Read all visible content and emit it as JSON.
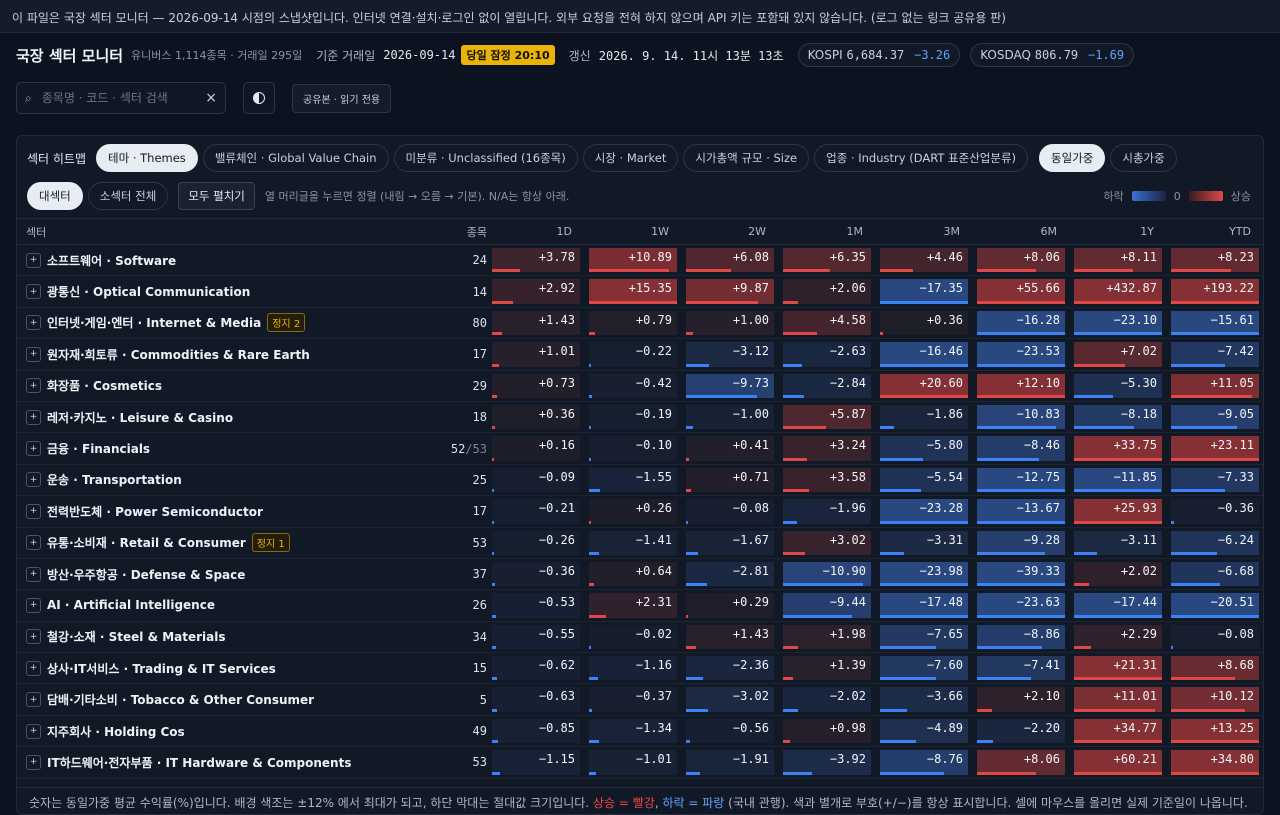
{
  "notice": "이 파일은 국장 섹터 모니터 — 2026-09-14 시점의 스냅샷입니다. 인터넷 연결·설치·로그인 없이 열립니다. 외부 요청을 전혀 하지 않으며 API 키는 포함돼 있지 않습니다. (로그 없는 링크 공유용 판)",
  "header": {
    "title": "국장 섹터 모니터",
    "universe": "유니버스 1,114종목 · 거래일 295일",
    "base_label": "기준 거래일",
    "base_date": "2026-09-14",
    "status_badge": "당일 잠정 20:10",
    "refresh_label": "갱신",
    "refresh_time": "2026. 9. 14. 11시 13분 13초",
    "kospi": {
      "name": "KOSPI",
      "value": "6,684.37",
      "change": "−3.26"
    },
    "kosdaq": {
      "name": "KOSDAQ",
      "value": "806.79",
      "change": "−1.69"
    },
    "search_placeholder": "종목명 · 코드 · 섹터 검색",
    "share_label": "공유본 · 읽기 전용"
  },
  "panel": {
    "title": "섹터 히트맵",
    "tabs": [
      "테마 · Themes",
      "밸류체인 · Global Value Chain",
      "미분류 · Unclassified (16종목)",
      "시장 · Market",
      "시가총액 규모 · Size",
      "업종 · Industry (DART 표준산업분류)"
    ],
    "weight_tabs": [
      "동일가중",
      "시총가중"
    ],
    "level_tabs": [
      "대섹터",
      "소섹터 전체"
    ],
    "expand_label": "모두 펼치기",
    "hint": "열 머리글을 누르면 정렬 (내림 → 오름 → 기본). N/A는 항상 아래.",
    "legend": {
      "down": "하락",
      "zero": "0",
      "up": "상승"
    },
    "columns": [
      "섹터",
      "종목",
      "1D",
      "1W",
      "2W",
      "1M",
      "3M",
      "6M",
      "1Y",
      "YTD"
    ],
    "expand_icon": "+",
    "rows": [
      {
        "name": "소프트웨어 · Software",
        "count": "24",
        "v": [
          "+3.78",
          "+10.89",
          "+6.08",
          "+6.35",
          "+4.46",
          "+8.06",
          "+8.11",
          "+8.23"
        ]
      },
      {
        "name": "광통신 · Optical Communication",
        "count": "14",
        "v": [
          "+2.92",
          "+15.35",
          "+9.87",
          "+2.06",
          "−17.35",
          "+55.66",
          "+432.87",
          "+193.22"
        ]
      },
      {
        "name": "인터넷·게임·엔터 · Internet & Media",
        "count": "80",
        "halt": "정지 2",
        "v": [
          "+1.43",
          "+0.79",
          "+1.00",
          "+4.58",
          "+0.36",
          "−16.28",
          "−23.10",
          "−15.61"
        ]
      },
      {
        "name": "원자재·희토류 · Commodities & Rare Earth",
        "count": "17",
        "v": [
          "+1.01",
          "−0.22",
          "−3.12",
          "−2.63",
          "−16.46",
          "−23.53",
          "+7.02",
          "−7.42"
        ]
      },
      {
        "name": "화장품 · Cosmetics",
        "count": "29",
        "v": [
          "+0.73",
          "−0.42",
          "−9.73",
          "−2.84",
          "+20.60",
          "+12.10",
          "−5.30",
          "+11.05"
        ]
      },
      {
        "name": "레저·카지노 · Leisure & Casino",
        "count": "18",
        "v": [
          "+0.36",
          "−0.19",
          "−1.00",
          "+5.87",
          "−1.86",
          "−10.83",
          "−8.18",
          "−9.05"
        ]
      },
      {
        "name": "금융 · Financials",
        "count": "52",
        "total": "/53",
        "v": [
          "+0.16",
          "−0.10",
          "+0.41",
          "+3.24",
          "−5.80",
          "−8.46",
          "+33.75",
          "+23.11"
        ]
      },
      {
        "name": "운송 · Transportation",
        "count": "25",
        "v": [
          "−0.09",
          "−1.55",
          "+0.71",
          "+3.58",
          "−5.54",
          "−12.75",
          "−11.85",
          "−7.33"
        ]
      },
      {
        "name": "전력반도체 · Power Semiconductor",
        "count": "17",
        "v": [
          "−0.21",
          "+0.26",
          "−0.08",
          "−1.96",
          "−23.28",
          "−13.67",
          "+25.93",
          "−0.36"
        ]
      },
      {
        "name": "유통·소비재 · Retail & Consumer",
        "count": "53",
        "halt": "정지 1",
        "v": [
          "−0.26",
          "−1.41",
          "−1.67",
          "+3.02",
          "−3.31",
          "−9.28",
          "−3.11",
          "−6.24"
        ]
      },
      {
        "name": "방산·우주항공 · Defense & Space",
        "count": "37",
        "v": [
          "−0.36",
          "+0.64",
          "−2.81",
          "−10.90",
          "−23.98",
          "−39.33",
          "+2.02",
          "−6.68"
        ]
      },
      {
        "name": "AI · Artificial Intelligence",
        "count": "26",
        "v": [
          "−0.53",
          "+2.31",
          "+0.29",
          "−9.44",
          "−17.48",
          "−23.63",
          "−17.44",
          "−20.51"
        ]
      },
      {
        "name": "철강·소재 · Steel & Materials",
        "count": "34",
        "v": [
          "−0.55",
          "−0.02",
          "+1.43",
          "+1.98",
          "−7.65",
          "−8.86",
          "+2.29",
          "−0.08"
        ]
      },
      {
        "name": "상사·IT서비스 · Trading & IT Services",
        "count": "15",
        "v": [
          "−0.62",
          "−1.16",
          "−2.36",
          "+1.39",
          "−7.60",
          "−7.41",
          "+21.31",
          "+8.68"
        ]
      },
      {
        "name": "담배·기타소비 · Tobacco & Other Consumer",
        "count": "5",
        "v": [
          "−0.63",
          "−0.37",
          "−3.02",
          "−2.02",
          "−3.66",
          "+2.10",
          "+11.01",
          "+10.12"
        ]
      },
      {
        "name": "지주회사 · Holding Cos",
        "count": "49",
        "v": [
          "−0.85",
          "−1.34",
          "−0.56",
          "+0.98",
          "−4.89",
          "−2.20",
          "+34.77",
          "+13.25"
        ]
      },
      {
        "name": "IT하드웨어·전자부품 · IT Hardware & Components",
        "count": "53",
        "v": [
          "−1.15",
          "−1.01",
          "−1.91",
          "−3.92",
          "−8.76",
          "+8.06",
          "+60.21",
          "+34.80"
        ]
      }
    ],
    "footer": {
      "pre": "숫자는 동일가중 평균 수익률(%)입니다. 배경 색조는 ±12% 에서 최대가 되고, 하단 막대는 절대값 크기입니다.",
      "up": "상승 = 빨강",
      "sep": ",",
      "down": "하락 = 파랑",
      "post": "(국내 관행). 색과 별개로 부호(+/−)를 항상 표시합니다. 셀에 마우스를 올리면 실제 기준일이 나옵니다."
    }
  },
  "colors": {
    "up": "#e04848",
    "down": "#3b82f6",
    "accent_badge": "#eab308"
  }
}
